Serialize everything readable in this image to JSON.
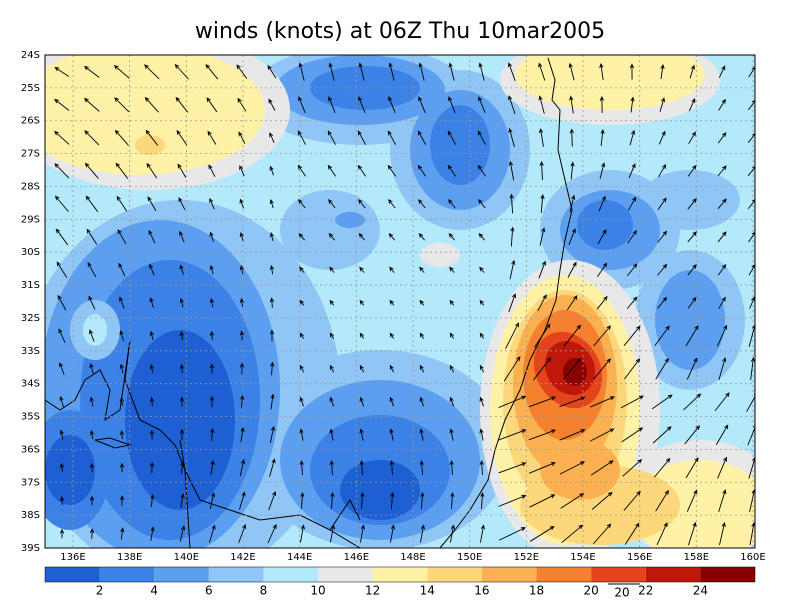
{
  "title": "winds (knots) at 06Z Thu 10mar2005",
  "lat_labels": [
    "24S",
    "25S",
    "26S",
    "27S",
    "28S",
    "29S",
    "30S",
    "31S",
    "32S",
    "33S",
    "34S",
    "35S",
    "36S",
    "37S",
    "38S",
    "39S"
  ],
  "lon_labels": [
    "136E",
    "138E",
    "140E",
    "142E",
    "144E",
    "146E",
    "148E",
    "150E",
    "152E",
    "154E",
    "156E",
    "158E",
    "160E"
  ],
  "colorbar": {
    "colors": [
      "#1f5fd4",
      "#3c82e6",
      "#5c9ff0",
      "#90c6f6",
      "#b4e8fb",
      "#e8e8e8",
      "#fff2a6",
      "#fcd77c",
      "#fbb152",
      "#f5812e",
      "#e4441c",
      "#c0170b",
      "#8a0000"
    ],
    "labels": [
      "2",
      "4",
      "6",
      "8",
      "10",
      "12",
      "14",
      "16",
      "18",
      "20",
      "22",
      "24"
    ],
    "extra_label": "20"
  }
}
